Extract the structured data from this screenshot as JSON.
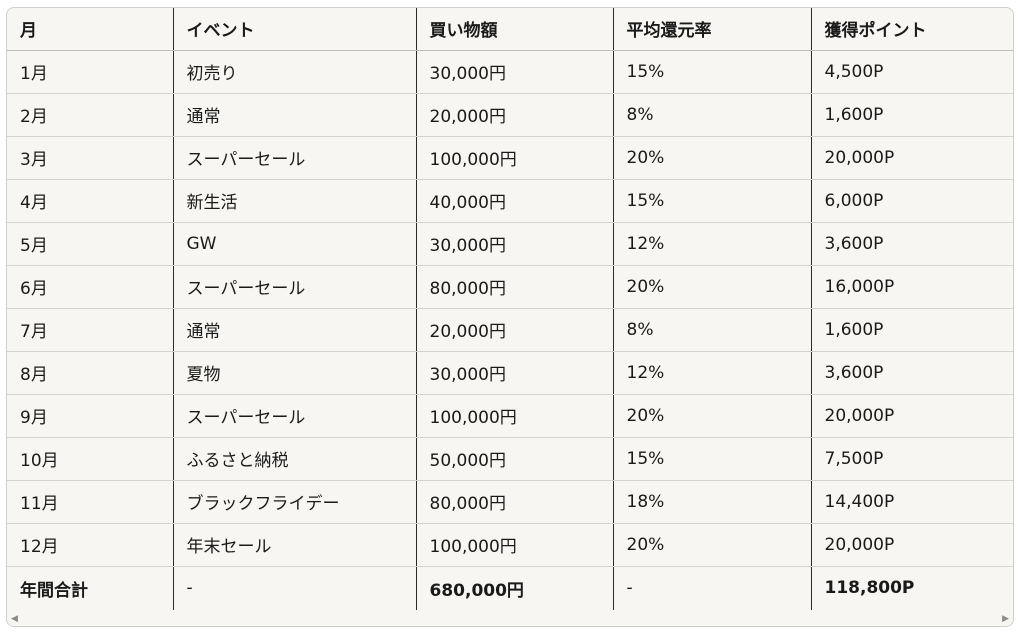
{
  "table": {
    "headers": [
      "月",
      "イベント",
      "買い物額",
      "平均還元率",
      "獲得ポイント"
    ],
    "rows": [
      [
        "1月",
        "初売り",
        "30,000円",
        "15%",
        "4,500P"
      ],
      [
        "2月",
        "通常",
        "20,000円",
        "8%",
        "1,600P"
      ],
      [
        "3月",
        "スーパーセール",
        "100,000円",
        "20%",
        "20,000P"
      ],
      [
        "4月",
        "新生活",
        "40,000円",
        "15%",
        "6,000P"
      ],
      [
        "5月",
        "GW",
        "30,000円",
        "12%",
        "3,600P"
      ],
      [
        "6月",
        "スーパーセール",
        "80,000円",
        "20%",
        "16,000P"
      ],
      [
        "7月",
        "通常",
        "20,000円",
        "8%",
        "1,600P"
      ],
      [
        "8月",
        "夏物",
        "30,000円",
        "12%",
        "3,600P"
      ],
      [
        "9月",
        "スーパーセール",
        "100,000円",
        "20%",
        "20,000P"
      ],
      [
        "10月",
        "ふるさと納税",
        "50,000円",
        "15%",
        "7,500P"
      ],
      [
        "11月",
        "ブラックフライデー",
        "80,000円",
        "18%",
        "14,400P"
      ],
      [
        "12月",
        "年末セール",
        "100,000円",
        "20%",
        "20,000P"
      ]
    ],
    "total": [
      "年間合計",
      "-",
      "680,000円",
      "-",
      "118,800P"
    ]
  },
  "scrollbar": {
    "left_arrow_icon": "chevron-left-icon",
    "right_arrow_icon": "chevron-right-icon",
    "left_glyph": "◀",
    "right_glyph": "▶"
  },
  "colors": {
    "background": "#f7f6f2",
    "column_divider": "#2b2b2b",
    "row_divider": "#d3d3d3"
  }
}
